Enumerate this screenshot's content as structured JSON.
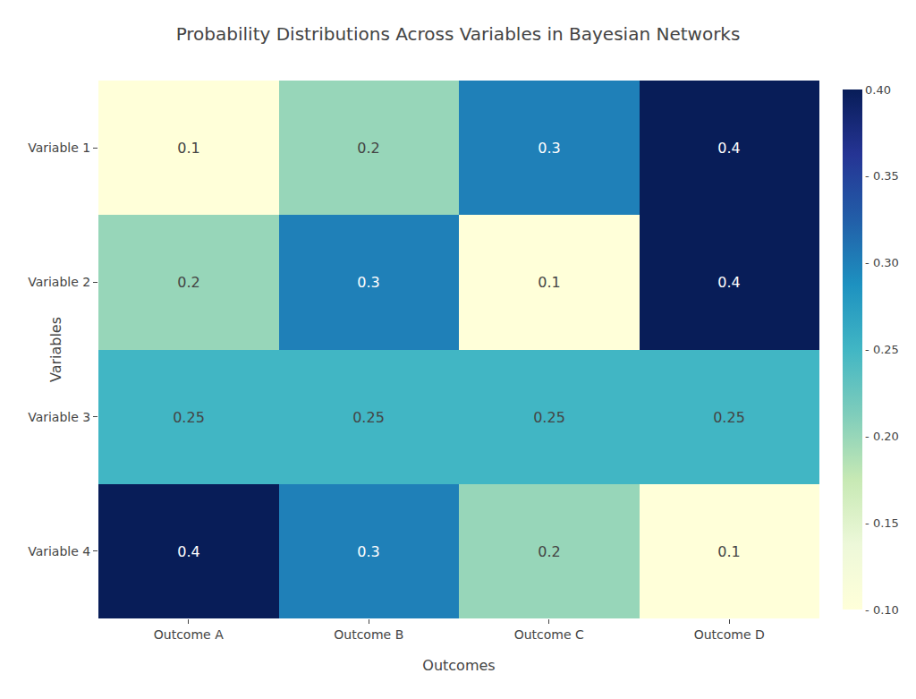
{
  "chart_data": {
    "type": "heatmap",
    "title": "Probability Distributions Across Variables in Bayesian Networks",
    "xlabel": "Outcomes",
    "ylabel": "Variables",
    "x_categories": [
      "Outcome A",
      "Outcome B",
      "Outcome C",
      "Outcome D"
    ],
    "y_categories": [
      "Variable 1",
      "Variable 2",
      "Variable 3",
      "Variable 4"
    ],
    "values": [
      [
        0.1,
        0.2,
        0.3,
        0.4
      ],
      [
        0.2,
        0.3,
        0.1,
        0.4
      ],
      [
        0.25,
        0.25,
        0.25,
        0.25
      ],
      [
        0.4,
        0.3,
        0.2,
        0.1
      ]
    ],
    "zlim": [
      0.1,
      0.4
    ],
    "zticks": [
      {
        "value": 0.1,
        "label": "- 0.10"
      },
      {
        "value": 0.15,
        "label": "- 0.15"
      },
      {
        "value": 0.2,
        "label": "- 0.20"
      },
      {
        "value": 0.25,
        "label": "- 0.25"
      },
      {
        "value": 0.3,
        "label": "- 0.30"
      },
      {
        "value": 0.35,
        "label": "- 0.35"
      },
      {
        "value": 0.4,
        "label": "0.40"
      }
    ],
    "data_labels": true
  }
}
